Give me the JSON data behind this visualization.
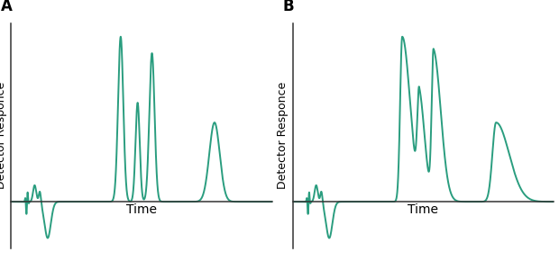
{
  "line_color": "#2a9d7f",
  "line_width": 1.4,
  "background_color": "#ffffff",
  "label_A": "A",
  "label_B": "B",
  "ylabel": "Detector Responce",
  "xlabel": "Time",
  "ylabel_fontsize": 9,
  "xlabel_fontsize": 10,
  "panel_label_fontsize": 12,
  "xlim": [
    0,
    10
  ],
  "ylim": [
    -0.28,
    1.08
  ]
}
